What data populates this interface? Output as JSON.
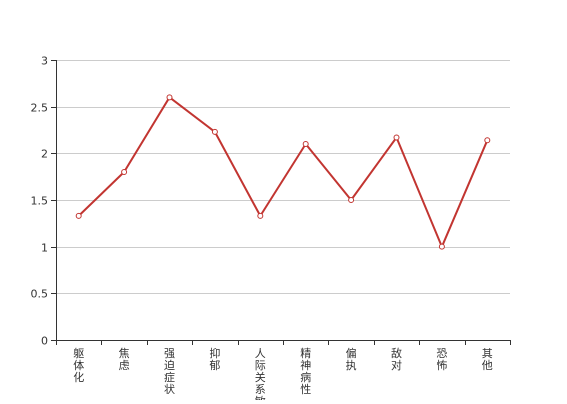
{
  "chart_data": {
    "type": "line",
    "categories": [
      "躯体化",
      "焦虑",
      "强迫症状",
      "抑郁",
      "人际关系敏感",
      "精神病性",
      "偏执",
      "敌对",
      "恐怖",
      "其他"
    ],
    "series": [
      {
        "values": [
          1.33,
          1.8,
          2.6,
          2.23,
          1.33,
          2.1,
          1.5,
          2.17,
          1.0,
          2.14
        ]
      }
    ],
    "y_ticks": [
      "0",
      "0.5",
      "1",
      "1.5",
      "2",
      "2.5",
      "3"
    ],
    "ylim": [
      0,
      3
    ],
    "grid": true,
    "line_color": "#c23531",
    "title": "",
    "xlabel": "",
    "ylabel": ""
  }
}
